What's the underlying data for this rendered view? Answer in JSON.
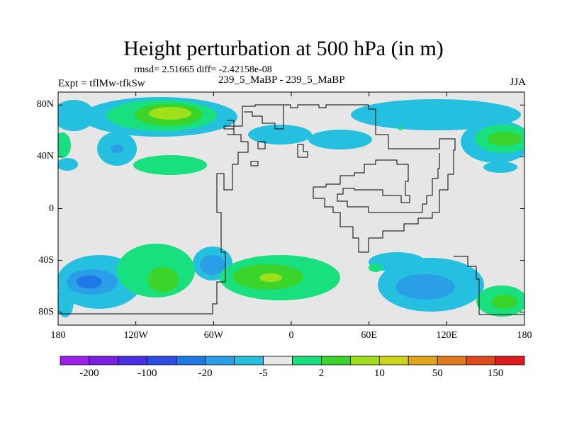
{
  "title": "Height perturbation at 500 hPa (in m)",
  "stats": "rmsd= 2.51665 diff= -2.42158e-08",
  "left_label": "Expt = tflMw-tfkSw",
  "center_label": "239_5_MaBP - 239_5_MaBP",
  "right_label": "JJA",
  "map": {
    "lon_range": [
      -180,
      180
    ],
    "lat_range": [
      -90,
      90
    ],
    "x_ticks": [
      {
        "value": -180,
        "label": "180"
      },
      {
        "value": -120,
        "label": "120W"
      },
      {
        "value": -60,
        "label": "60W"
      },
      {
        "value": 0,
        "label": "0"
      },
      {
        "value": 60,
        "label": "60E"
      },
      {
        "value": 120,
        "label": "120E"
      },
      {
        "value": 180,
        "label": "180"
      }
    ],
    "y_ticks": [
      {
        "value": 80,
        "label": "80N"
      },
      {
        "value": 40,
        "label": "40N"
      },
      {
        "value": 0,
        "label": "0"
      },
      {
        "value": -40,
        "label": "40S"
      },
      {
        "value": -80,
        "label": "80S"
      }
    ],
    "background_color": "#e6e6e6"
  },
  "colorbar": {
    "colors": [
      "#9f1ff0",
      "#7d20e6",
      "#4a2fe6",
      "#2d4fe6",
      "#1e78e6",
      "#2a9ee6",
      "#25c0e0",
      "#e6e6e6",
      "#19e07e",
      "#3ad42a",
      "#9fe01a",
      "#cfd41a",
      "#e0a51a",
      "#e07a1a",
      "#e04a1a",
      "#e01a1a"
    ],
    "labels": [
      {
        "boundary": 1,
        "text": "-200"
      },
      {
        "boundary": 3,
        "text": "-100"
      },
      {
        "boundary": 5,
        "text": "-20"
      },
      {
        "boundary": 7,
        "text": "-5"
      },
      {
        "boundary": 9,
        "text": "2"
      },
      {
        "boundary": 11,
        "text": "10"
      },
      {
        "boundary": 13,
        "text": "50"
      },
      {
        "boundary": 15,
        "text": "150"
      }
    ]
  }
}
